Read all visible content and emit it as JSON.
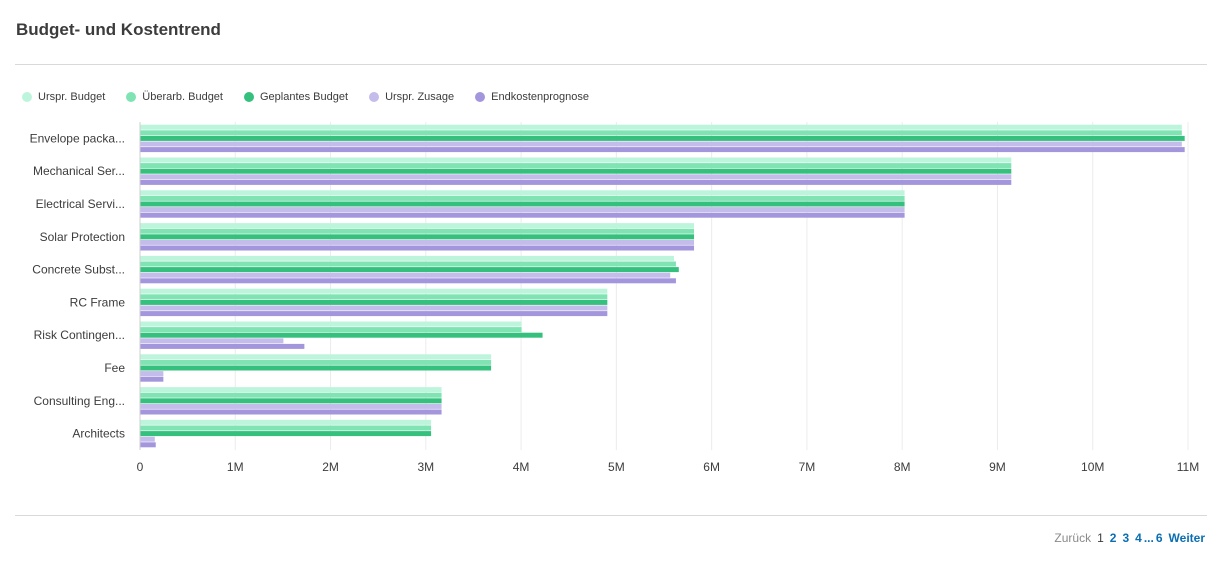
{
  "header": {
    "title": "Budget- und Kostentrend"
  },
  "legend": [
    {
      "label": "Urspr. Budget",
      "color": "#bdf5dc"
    },
    {
      "label": "Überarb. Budget",
      "color": "#7fe3b4"
    },
    {
      "label": "Geplantes Budget",
      "color": "#35c07e"
    },
    {
      "label": "Urspr. Zusage",
      "color": "#c4bceb"
    },
    {
      "label": "Endkostenprognose",
      "color": "#a496dd"
    }
  ],
  "chart_data": {
    "type": "bar",
    "orientation": "horizontal",
    "title": "",
    "xlabel": "",
    "ylabel": "",
    "xlim": [
      0,
      11000000
    ],
    "grid": true,
    "legend_position": "top-left",
    "x_ticks": [
      "0",
      "1M",
      "2M",
      "3M",
      "4M",
      "5M",
      "6M",
      "7M",
      "8M",
      "9M",
      "10M",
      "11M"
    ],
    "categories": [
      "Envelope packa...",
      "Mechanical Ser...",
      "Electrical Servi...",
      "Solar Protection",
      "Concrete Subst...",
      "RC Frame",
      "Risk Contingen...",
      "Fee",
      "Consulting Eng...",
      "Architects"
    ],
    "series": [
      {
        "name": "Urspr. Budget",
        "color": "#bdf5dc",
        "values": [
          10930000,
          9140000,
          8020000,
          5810000,
          5600000,
          4900000,
          4000000,
          3680000,
          3160000,
          3050000
        ]
      },
      {
        "name": "Überarb. Budget",
        "color": "#7fe3b4",
        "values": [
          10930000,
          9140000,
          8020000,
          5810000,
          5620000,
          4900000,
          4000000,
          3680000,
          3160000,
          3050000
        ]
      },
      {
        "name": "Geplantes Budget",
        "color": "#35c07e",
        "values": [
          10960000,
          9140000,
          8020000,
          5810000,
          5650000,
          4900000,
          4220000,
          3680000,
          3160000,
          3050000
        ]
      },
      {
        "name": "Urspr. Zusage",
        "color": "#c4bceb",
        "values": [
          10930000,
          9140000,
          8020000,
          5810000,
          5560000,
          4900000,
          1500000,
          240000,
          3160000,
          150000
        ]
      },
      {
        "name": "Endkostenprognose",
        "color": "#a496dd",
        "values": [
          10960000,
          9140000,
          8020000,
          5810000,
          5620000,
          4900000,
          1720000,
          240000,
          3160000,
          160000
        ]
      }
    ]
  },
  "pagination": {
    "prev": "Zurück",
    "current": "1",
    "pages": [
      "2",
      "3",
      "4"
    ],
    "ellipsis": "...",
    "last": "6",
    "next": "Weiter"
  }
}
